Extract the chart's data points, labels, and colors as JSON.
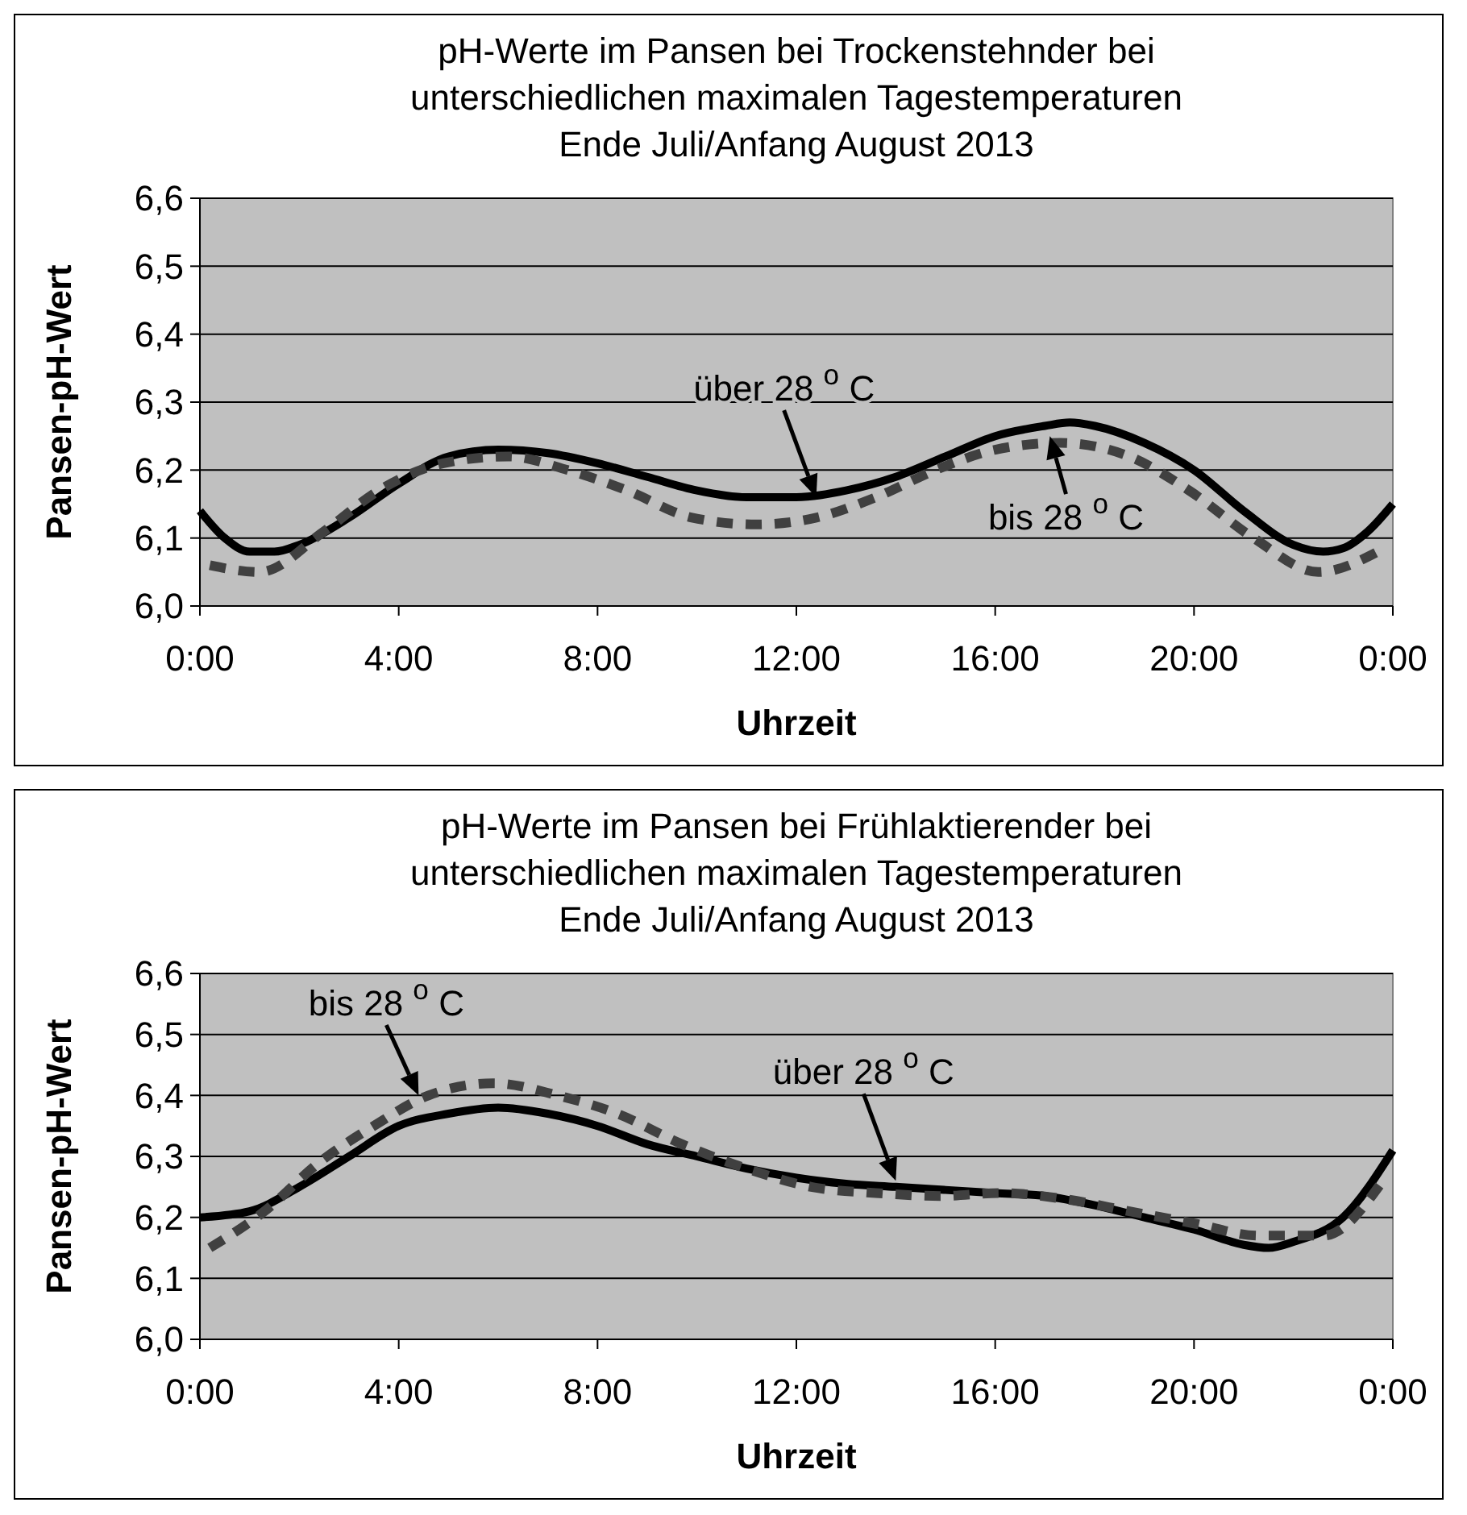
{
  "chart_data": [
    {
      "type": "line",
      "title": "pH-Werte im Pansen bei Trockenstehnder bei\nunterschiedlichen maximalen Tagestemperaturen\nEnde Juli/Anfang August  2013",
      "xlabel": "Uhrzeit",
      "ylabel": "Pansen-pH-Wert",
      "xlim": [
        0,
        24
      ],
      "xticks": [
        {
          "value": 0,
          "label": "0:00"
        },
        {
          "value": 4,
          "label": "4:00"
        },
        {
          "value": 8,
          "label": "8:00"
        },
        {
          "value": 12,
          "label": "12:00"
        },
        {
          "value": 16,
          "label": "16:00"
        },
        {
          "value": 20,
          "label": "20:00"
        },
        {
          "value": 24,
          "label": "0:00"
        }
      ],
      "ylim": [
        6.0,
        6.6
      ],
      "yticks": [
        {
          "value": 6.0,
          "label": "6,0"
        },
        {
          "value": 6.1,
          "label": "6,1"
        },
        {
          "value": 6.2,
          "label": "6,2"
        },
        {
          "value": 6.3,
          "label": "6,3"
        },
        {
          "value": 6.4,
          "label": "6,4"
        },
        {
          "value": 6.5,
          "label": "6,5"
        },
        {
          "value": 6.6,
          "label": "6,6"
        }
      ],
      "grid": "y",
      "marker": "none",
      "series": [
        {
          "color": "#000000",
          "line_style": "solid",
          "x": [
            0,
            0.5,
            1,
            1.5,
            2,
            3,
            4,
            5,
            6,
            7,
            8,
            9,
            10,
            11,
            12,
            13,
            14,
            15,
            16,
            17,
            17.5,
            18,
            19,
            20,
            21,
            22,
            22.6,
            23,
            23.5,
            24
          ],
          "values": [
            6.14,
            6.1,
            6.08,
            6.08,
            6.09,
            6.13,
            6.18,
            6.22,
            6.23,
            6.225,
            6.21,
            6.19,
            6.17,
            6.16,
            6.16,
            6.17,
            6.19,
            6.22,
            6.25,
            6.265,
            6.27,
            6.265,
            6.24,
            6.2,
            6.14,
            6.09,
            6.08,
            6.085,
            6.11,
            6.15
          ]
        },
        {
          "color": "#404040",
          "line_style": "dashed",
          "x": [
            0.2,
            1.2,
            2.5,
            3.6,
            4.9,
            6.2,
            7.4,
            8.6,
            9.9,
            11.2,
            12.4,
            13.6,
            14.8,
            16,
            17.3,
            18.7,
            19.9,
            21.2,
            22.5,
            23.7
          ],
          "values": [
            6.06,
            6.05,
            6.11,
            6.17,
            6.21,
            6.22,
            6.2,
            6.17,
            6.13,
            6.12,
            6.13,
            6.16,
            6.2,
            6.23,
            6.24,
            6.22,
            6.17,
            6.1,
            6.05,
            6.08
          ]
        }
      ],
      "annotations": [
        {
          "text": "über 28 $^{o}$ C",
          "x": 12.4,
          "y": 6.16
        },
        {
          "text": "bis 28 $^{o}$ C",
          "x": 17.1,
          "y": 6.25
        }
      ]
    },
    {
      "type": "line",
      "title": "pH-Werte im Pansen bei Frühlaktierender bei\nunterschiedlichen maximalen Tagestemperaturen\nEnde Juli/Anfang August  2013",
      "xlabel": "Uhrzeit",
      "ylabel": "Pansen-pH-Wert",
      "xlim": [
        0,
        24
      ],
      "xticks": [
        {
          "value": 0,
          "label": "0:00"
        },
        {
          "value": 4,
          "label": "4:00"
        },
        {
          "value": 8,
          "label": "8:00"
        },
        {
          "value": 12,
          "label": "12:00"
        },
        {
          "value": 16,
          "label": "16:00"
        },
        {
          "value": 20,
          "label": "20:00"
        },
        {
          "value": 24,
          "label": "0:00"
        }
      ],
      "ylim": [
        6.0,
        6.6
      ],
      "yticks": [
        {
          "value": 6.0,
          "label": "6,0"
        },
        {
          "value": 6.1,
          "label": "6,1"
        },
        {
          "value": 6.2,
          "label": "6,2"
        },
        {
          "value": 6.3,
          "label": "6,3"
        },
        {
          "value": 6.4,
          "label": "6,4"
        },
        {
          "value": 6.5,
          "label": "6,5"
        },
        {
          "value": 6.6,
          "label": "6,6"
        }
      ],
      "grid": "y",
      "marker": "none",
      "series": [
        {
          "color": "#000000",
          "line_style": "solid",
          "x": [
            0,
            1,
            2,
            3,
            4,
            5,
            6,
            7,
            8,
            9,
            10,
            11,
            12,
            13,
            14,
            15,
            16,
            17,
            18,
            19,
            20,
            21,
            21.5,
            22,
            23,
            24
          ],
          "values": [
            6.2,
            6.21,
            6.25,
            6.3,
            6.35,
            6.37,
            6.38,
            6.37,
            6.35,
            6.32,
            6.3,
            6.28,
            6.265,
            6.255,
            6.25,
            6.245,
            6.24,
            6.235,
            6.22,
            6.2,
            6.18,
            6.155,
            6.15,
            6.16,
            6.2,
            6.31
          ]
        },
        {
          "color": "#404040",
          "line_style": "dashed",
          "x": [
            0.2,
            1.3,
            2.4,
            3.5,
            4.6,
            5.9,
            7.2,
            8.4,
            9.7,
            11,
            12.3,
            13.6,
            14.9,
            16.1,
            17.4,
            18.7,
            20,
            21.3,
            22.6,
            23.8
          ],
          "values": [
            6.15,
            6.21,
            6.29,
            6.35,
            6.4,
            6.42,
            6.4,
            6.37,
            6.32,
            6.28,
            6.25,
            6.24,
            6.235,
            6.24,
            6.23,
            6.21,
            6.19,
            6.17,
            6.17,
            6.26
          ]
        }
      ],
      "annotations": [
        {
          "text": "bis 28 $^{o}$ C",
          "x": 4.4,
          "y": 6.4
        },
        {
          "text": "über 28 $^{o}$ C",
          "x": 14,
          "y": 6.26
        }
      ]
    }
  ]
}
